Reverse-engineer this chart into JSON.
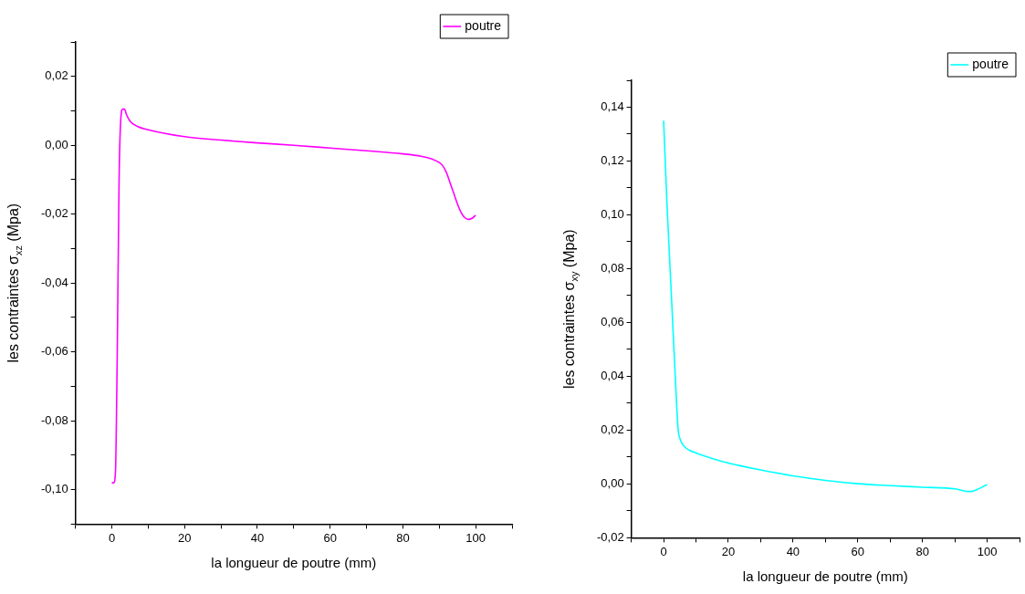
{
  "chart_data": [
    {
      "type": "line",
      "xlabel": "la longueur de poutre (mm)",
      "ylabel": "les contraintes σ$_{xz}$ (Mpa)",
      "series": [
        {
          "name": "poutre",
          "color": "#ff00ff",
          "x": [
            0,
            0.5,
            1,
            1.5,
            2,
            2.5,
            3,
            3.5,
            4,
            5,
            7,
            10,
            20,
            30,
            40,
            50,
            60,
            70,
            80,
            85,
            88,
            90,
            91,
            92,
            93,
            94,
            95,
            96,
            97,
            98,
            99,
            100
          ],
          "values": [
            -0.098,
            -0.098,
            -0.095,
            -0.06,
            -0.01,
            0.008,
            0.0105,
            0.0105,
            0.009,
            0.007,
            0.0055,
            0.0045,
            0.0025,
            0.0015,
            0.0007,
            0,
            -0.0008,
            -0.0016,
            -0.0025,
            -0.0032,
            -0.004,
            -0.005,
            -0.006,
            -0.008,
            -0.011,
            -0.014,
            -0.017,
            -0.0195,
            -0.021,
            -0.0215,
            -0.0212,
            -0.0203
          ]
        }
      ],
      "xlim": [
        -10,
        110
      ],
      "xticks": [
        {
          "value": -10,
          "label": null
        },
        0,
        {
          "value": 10,
          "label": null
        },
        20,
        {
          "value": 30,
          "label": null
        },
        40,
        {
          "value": 50,
          "label": null
        },
        60,
        {
          "value": 70,
          "label": null
        },
        80,
        {
          "value": 90,
          "label": null
        },
        100,
        {
          "value": 110,
          "label": null
        }
      ],
      "ylim": [
        -0.11,
        0.03
      ],
      "yticks": [
        {
          "value": -0.11,
          "label": null
        },
        {
          "value": -0.1,
          "label": "-0,10"
        },
        {
          "value": -0.09,
          "label": null
        },
        {
          "value": -0.08,
          "label": "-0,08"
        },
        {
          "value": -0.07,
          "label": null
        },
        {
          "value": -0.06,
          "label": "-0,06"
        },
        {
          "value": -0.05,
          "label": null
        },
        {
          "value": -0.04,
          "label": "-0,04"
        },
        {
          "value": -0.03,
          "label": null
        },
        {
          "value": -0.02,
          "label": "-0,02"
        },
        {
          "value": -0.01,
          "label": null
        },
        {
          "value": 0,
          "label": "0,00"
        },
        {
          "value": 0.01,
          "label": null
        },
        {
          "value": 0.02,
          "label": "0,02"
        },
        {
          "value": 0.03,
          "label": null
        }
      ],
      "grid": false,
      "legend": "top right",
      "marker": "none",
      "line_style": "solid"
    },
    {
      "type": "line",
      "xlabel": "la longueur de poutre (mm)",
      "ylabel": "les contraintes σ$_{xy}$ (Mpa)",
      "series": [
        {
          "name": "poutre",
          "color": "#00ffff",
          "x": [
            0,
            0.5,
            1,
            2,
            3,
            4,
            4.5,
            5,
            6,
            8,
            10,
            15,
            20,
            30,
            40,
            50,
            60,
            70,
            80,
            90,
            92,
            94,
            95,
            97,
            99,
            100
          ],
          "values": [
            0.135,
            0.12,
            0.105,
            0.08,
            0.055,
            0.03,
            0.02,
            0.017,
            0.0145,
            0.0125,
            0.0115,
            0.0095,
            0.0078,
            0.0052,
            0.003,
            0.0013,
            0.0001,
            -0.0006,
            -0.0012,
            -0.0018,
            -0.0023,
            -0.0028,
            -0.0028,
            -0.002,
            -0.0008,
            -0.0003
          ]
        }
      ],
      "xlim": [
        -10,
        110
      ],
      "xticks": [
        {
          "value": -10,
          "label": null
        },
        0,
        {
          "value": 10,
          "label": null
        },
        20,
        {
          "value": 30,
          "label": null
        },
        40,
        {
          "value": 50,
          "label": null
        },
        60,
        {
          "value": 70,
          "label": null
        },
        80,
        {
          "value": 90,
          "label": null
        },
        100,
        {
          "value": 110,
          "label": null
        }
      ],
      "ylim": [
        -0.02,
        0.15
      ],
      "yticks": [
        {
          "value": -0.02,
          "label": "-0,02"
        },
        {
          "value": -0.01,
          "label": null
        },
        {
          "value": 0,
          "label": "0,00"
        },
        {
          "value": 0.01,
          "label": null
        },
        {
          "value": 0.02,
          "label": "0,02"
        },
        {
          "value": 0.03,
          "label": null
        },
        {
          "value": 0.04,
          "label": "0,04"
        },
        {
          "value": 0.05,
          "label": null
        },
        {
          "value": 0.06,
          "label": "0,06"
        },
        {
          "value": 0.07,
          "label": null
        },
        {
          "value": 0.08,
          "label": "0,08"
        },
        {
          "value": 0.09,
          "label": null
        },
        {
          "value": 0.1,
          "label": "0,10"
        },
        {
          "value": 0.11,
          "label": null
        },
        {
          "value": 0.12,
          "label": "0,12"
        },
        {
          "value": 0.13,
          "label": null
        },
        {
          "value": 0.14,
          "label": "0,14"
        },
        {
          "value": 0.15,
          "label": null
        }
      ],
      "grid": false,
      "legend": "top right",
      "marker": "none",
      "line_style": "solid"
    }
  ]
}
